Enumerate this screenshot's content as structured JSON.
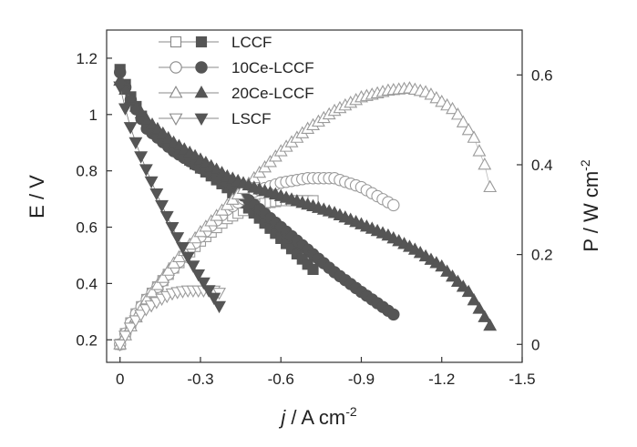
{
  "chart_data": {
    "type": "line",
    "title": "",
    "x": {
      "label_italic": "j",
      "label_rest": " / A cm",
      "label_sup": "-2",
      "range": [
        0.05,
        -1.5
      ],
      "ticks": [
        0,
        -0.3,
        -0.6,
        -0.9,
        -1.2,
        -1.5
      ],
      "tick_labels": [
        "0",
        "-0.3",
        "-0.6",
        "-0.9",
        "-1.2",
        "-1.5"
      ]
    },
    "y_left": {
      "label": "E / V",
      "range": [
        0.12,
        1.3
      ],
      "ticks": [
        0.2,
        0.4,
        0.6,
        0.8,
        1.0,
        1.2
      ],
      "tick_labels": [
        "0.2",
        "0.4",
        "0.6",
        "0.8",
        "1",
        "1.2"
      ]
    },
    "y_right": {
      "label": "P / W cm",
      "label_sup": "-2",
      "range": [
        -0.04,
        0.7
      ],
      "ticks": [
        0,
        0.2,
        0.4,
        0.6
      ],
      "tick_labels": [
        "0",
        "0.2",
        "0.4",
        "0.6"
      ]
    },
    "legend": {
      "position": "top-left",
      "entries": [
        "LCCF",
        "10Ce-LCCF",
        "20Ce-LCCF",
        "LSCF"
      ]
    },
    "series": [
      {
        "name": "LCCF",
        "marker": "square",
        "color": "#555555",
        "j_max": 0.72,
        "voltage": [
          [
            0,
            1.16
          ],
          [
            0.03,
            1.08
          ],
          [
            0.1,
            0.96
          ],
          [
            0.2,
            0.88
          ],
          [
            0.3,
            0.81
          ],
          [
            0.4,
            0.74
          ],
          [
            0.5,
            0.65
          ],
          [
            0.6,
            0.56
          ],
          [
            0.72,
            0.45
          ]
        ],
        "power": [
          [
            0,
            0
          ],
          [
            0.05,
            0.06
          ],
          [
            0.1,
            0.1
          ],
          [
            0.2,
            0.17
          ],
          [
            0.3,
            0.23
          ],
          [
            0.4,
            0.28
          ],
          [
            0.5,
            0.31
          ],
          [
            0.6,
            0.32
          ],
          [
            0.72,
            0.32
          ]
        ]
      },
      {
        "name": "10Ce-LCCF",
        "marker": "circle",
        "color": "#555555",
        "j_max": 1.02,
        "voltage": [
          [
            0,
            1.15
          ],
          [
            0.03,
            1.07
          ],
          [
            0.1,
            0.95
          ],
          [
            0.2,
            0.87
          ],
          [
            0.3,
            0.81
          ],
          [
            0.4,
            0.76
          ],
          [
            0.5,
            0.68
          ],
          [
            0.6,
            0.6
          ],
          [
            0.7,
            0.52
          ],
          [
            0.8,
            0.44
          ],
          [
            0.9,
            0.37
          ],
          [
            1.02,
            0.29
          ]
        ],
        "power": [
          [
            0,
            0
          ],
          [
            0.05,
            0.06
          ],
          [
            0.1,
            0.1
          ],
          [
            0.2,
            0.17
          ],
          [
            0.3,
            0.24
          ],
          [
            0.4,
            0.3
          ],
          [
            0.5,
            0.34
          ],
          [
            0.6,
            0.36
          ],
          [
            0.7,
            0.37
          ],
          [
            0.8,
            0.37
          ],
          [
            0.9,
            0.35
          ],
          [
            1.02,
            0.31
          ]
        ]
      },
      {
        "name": "20Ce-LCCF",
        "marker": "triangle",
        "color": "#555555",
        "j_max": 1.38,
        "voltage": [
          [
            0,
            1.12
          ],
          [
            0.05,
            1.04
          ],
          [
            0.1,
            0.98
          ],
          [
            0.2,
            0.9
          ],
          [
            0.3,
            0.84
          ],
          [
            0.4,
            0.78
          ],
          [
            0.5,
            0.74
          ],
          [
            0.6,
            0.71
          ],
          [
            0.7,
            0.68
          ],
          [
            0.8,
            0.65
          ],
          [
            0.9,
            0.61
          ],
          [
            1.0,
            0.57
          ],
          [
            1.1,
            0.52
          ],
          [
            1.2,
            0.46
          ],
          [
            1.3,
            0.37
          ],
          [
            1.38,
            0.25
          ]
        ],
        "power": [
          [
            0,
            0
          ],
          [
            0.05,
            0.05
          ],
          [
            0.1,
            0.1
          ],
          [
            0.2,
            0.18
          ],
          [
            0.3,
            0.25
          ],
          [
            0.4,
            0.31
          ],
          [
            0.5,
            0.37
          ],
          [
            0.6,
            0.43
          ],
          [
            0.7,
            0.48
          ],
          [
            0.8,
            0.52
          ],
          [
            0.9,
            0.55
          ],
          [
            1.0,
            0.565
          ],
          [
            1.08,
            0.57
          ],
          [
            1.15,
            0.56
          ],
          [
            1.25,
            0.52
          ],
          [
            1.32,
            0.46
          ],
          [
            1.36,
            0.4
          ],
          [
            1.38,
            0.35
          ]
        ]
      },
      {
        "name": "LSCF",
        "marker": "triangle-down",
        "color": "#555555",
        "j_max": 0.37,
        "voltage": [
          [
            0,
            1.1
          ],
          [
            0.03,
            0.98
          ],
          [
            0.07,
            0.87
          ],
          [
            0.1,
            0.8
          ],
          [
            0.15,
            0.69
          ],
          [
            0.2,
            0.59
          ],
          [
            0.25,
            0.5
          ],
          [
            0.3,
            0.42
          ],
          [
            0.35,
            0.35
          ],
          [
            0.37,
            0.32
          ]
        ],
        "power": [
          [
            0,
            0
          ],
          [
            0.03,
            0.03
          ],
          [
            0.06,
            0.055
          ],
          [
            0.1,
            0.08
          ],
          [
            0.15,
            0.1
          ],
          [
            0.2,
            0.115
          ],
          [
            0.25,
            0.12
          ],
          [
            0.3,
            0.12
          ],
          [
            0.35,
            0.12
          ],
          [
            0.37,
            0.115
          ]
        ]
      }
    ]
  }
}
